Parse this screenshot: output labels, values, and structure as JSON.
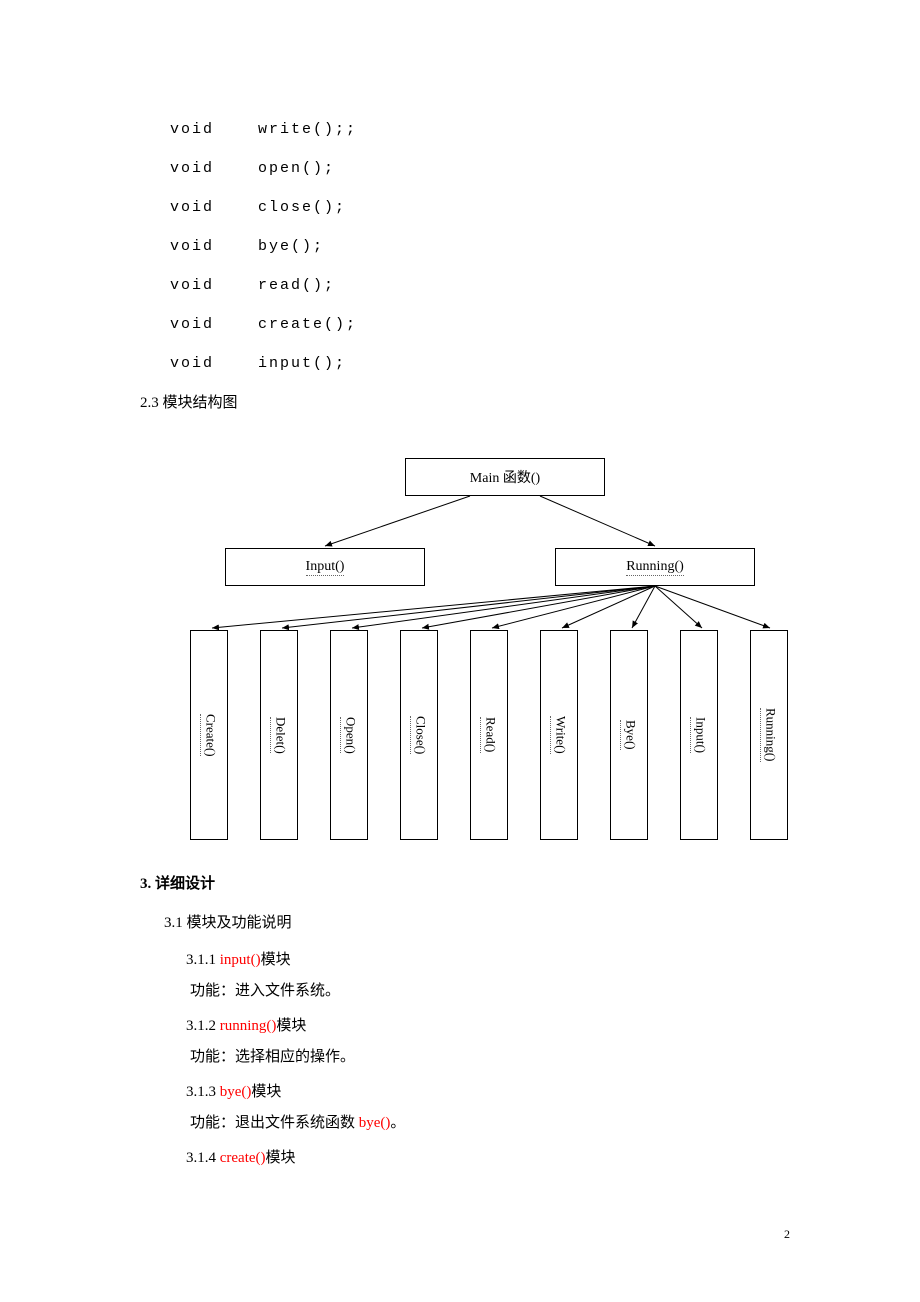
{
  "code": {
    "lines": [
      "void    write();;",
      "void    open();",
      "void    close();",
      "void    bye();",
      "void    read();",
      "void    create();",
      "void    input();"
    ]
  },
  "section23": "2.3 模块结构图",
  "diagram": {
    "root": "Main 函数()",
    "mid_left": "Input()",
    "mid_right": "Running()",
    "leaves": [
      "Create()",
      "Delet()",
      "Open()",
      "Close()",
      "Read()",
      "Write()",
      "Bye()",
      "Input()",
      "Running()"
    ],
    "leaf_x": [
      10,
      80,
      150,
      220,
      290,
      360,
      430,
      500,
      570
    ],
    "colors": {
      "box_border": "#000000",
      "arrow": "#000000",
      "bg": "#ffffff"
    }
  },
  "section3": {
    "heading": "3. 详细设计",
    "sub": "3.1  模块及功能说明",
    "items": [
      {
        "num": "3.1.1",
        "name": "input()",
        "suffix": "模块",
        "func": "功能：进入文件系统。"
      },
      {
        "num": "3.1.2",
        "name": "running()",
        "suffix": "模块",
        "func": "功能：选择相应的操作。"
      },
      {
        "num": "3.1.3",
        "name": "bye()",
        "suffix": "模块",
        "func_prefix": "功能：退出文件系统函数 ",
        "func_red": "bye()",
        "func_suffix": "。"
      },
      {
        "num": "3.1.4",
        "name": "create()",
        "suffix": "模块"
      }
    ]
  },
  "page_number": "2"
}
